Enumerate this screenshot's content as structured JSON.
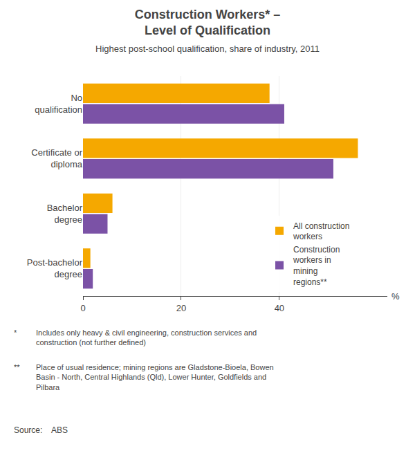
{
  "chart_data": {
    "type": "bar",
    "orientation": "horizontal",
    "title": "Construction Workers* –\nLevel of Qualification",
    "subtitle": "Highest post-school qualification, share of industry, 2011",
    "categories": [
      "No\nqualification",
      "Certificate or\ndiploma",
      "Bachelor\ndegree",
      "Post-bachelor\ndegree"
    ],
    "series": [
      {
        "name": "All construction\nworkers",
        "color": "#F5A800",
        "values": [
          38,
          56,
          6,
          1.5
        ]
      },
      {
        "name": "Construction\nworkers in\nmining\nregions**",
        "color": "#7B52A6",
        "values": [
          41,
          51,
          5,
          2
        ]
      }
    ],
    "xlabel": "%",
    "xlim": [
      0,
      62
    ],
    "xticks": [
      0,
      20,
      40
    ],
    "grid": true,
    "legend": "lower right",
    "footnotes": [
      {
        "symbol": "*",
        "text": "Includes only heavy & civil engineering, construction services and\nconstruction (not further defined)"
      },
      {
        "symbol": "**",
        "text": "Place of usual residence; mining regions are Gladstone-Bioela, Bowen\nBasin - North, Central Highlands (Qld), Lower Hunter, Goldfields and\nPilbara"
      }
    ],
    "source": "Source:    ABS"
  }
}
